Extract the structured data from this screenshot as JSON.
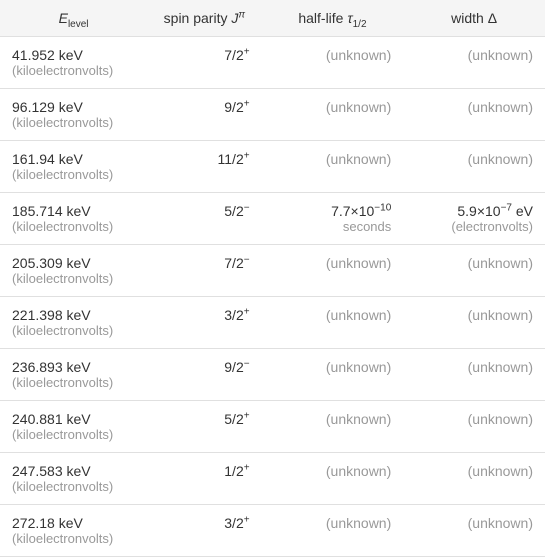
{
  "type": "table",
  "columns": [
    {
      "key": "elevel",
      "label_html": "E_level",
      "align": "left",
      "width_pct": 27
    },
    {
      "key": "spin",
      "label_html": "spin parity J^pi",
      "align": "right",
      "width_pct": 21
    },
    {
      "key": "halflife",
      "label_html": "half-life tau_1/2",
      "align": "right",
      "width_pct": 26
    },
    {
      "key": "width",
      "label_html": "width Delta",
      "align": "right",
      "width_pct": 26
    }
  ],
  "headers": {
    "elevel": {
      "var": "E",
      "sub": "level"
    },
    "spin": {
      "prefix": "spin parity ",
      "var": "J",
      "sup": "π"
    },
    "halflife": {
      "prefix": "half-life ",
      "var": "τ",
      "sub": "1/2"
    },
    "width": {
      "prefix": "width Δ"
    }
  },
  "unit_label": "(kiloelectronvolts)",
  "unknown_label": "(unknown)",
  "ev_unit_label": "(electronvolts)",
  "rows": [
    {
      "elevel_value": "41.952 keV",
      "spin_base": "7/2",
      "spin_sign": "+",
      "halflife": null,
      "width": null
    },
    {
      "elevel_value": "96.129 keV",
      "spin_base": "9/2",
      "spin_sign": "+",
      "halflife": null,
      "width": null
    },
    {
      "elevel_value": "161.94 keV",
      "spin_base": "11/2",
      "spin_sign": "+",
      "halflife": null,
      "width": null
    },
    {
      "elevel_value": "185.714 keV",
      "spin_base": "5/2",
      "spin_sign": "−",
      "halflife": {
        "mantissa": "7.7",
        "exp": "−10",
        "unit": "seconds"
      },
      "width": {
        "mantissa": "5.9",
        "exp": "−7",
        "unit": "eV"
      }
    },
    {
      "elevel_value": "205.309 keV",
      "spin_base": "7/2",
      "spin_sign": "−",
      "halflife": null,
      "width": null
    },
    {
      "elevel_value": "221.398 keV",
      "spin_base": "3/2",
      "spin_sign": "+",
      "halflife": null,
      "width": null
    },
    {
      "elevel_value": "236.893 keV",
      "spin_base": "9/2",
      "spin_sign": "−",
      "halflife": null,
      "width": null
    },
    {
      "elevel_value": "240.881 keV",
      "spin_base": "5/2",
      "spin_sign": "+",
      "halflife": null,
      "width": null
    },
    {
      "elevel_value": "247.583 keV",
      "spin_base": "1/2",
      "spin_sign": "+",
      "halflife": null,
      "width": null
    },
    {
      "elevel_value": "272.18 keV",
      "spin_base": "3/2",
      "spin_sign": "+",
      "halflife": null,
      "width": null
    }
  ],
  "styling": {
    "background_color": "#ffffff",
    "header_background": "#f5f5f5",
    "border_color": "#e0e0e0",
    "text_color": "#333333",
    "muted_color": "#999999",
    "font_size_body": 14,
    "font_size_unit": 13,
    "font_size_supsub": 10,
    "cell_padding_v": 10,
    "cell_padding_h": 12
  }
}
